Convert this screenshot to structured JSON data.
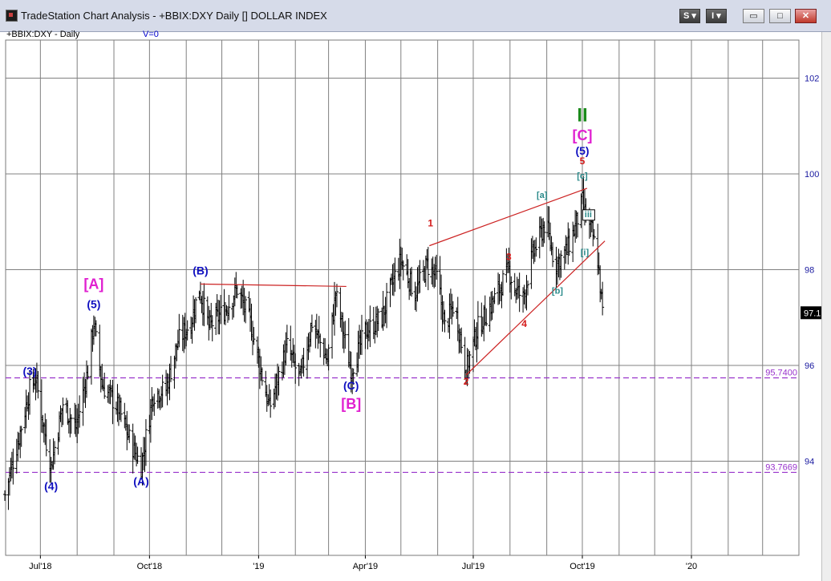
{
  "window": {
    "title": "TradeStation Chart Analysis - +BBIX:DXY Daily [] DOLLAR INDEX",
    "buttons": {
      "s_label": "S",
      "i_label": "I",
      "minimize": "▭",
      "restore": "□",
      "close": "✕"
    }
  },
  "chart_header": {
    "symbol": "+BBIX:DXY - Daily",
    "volume_label": "V=0"
  },
  "colors": {
    "grid": "#808080",
    "bars": "#000000",
    "wave_blue": "#1010c0",
    "wave_red": "#d41a1a",
    "wave_magenta": "#e020d0",
    "wave_teal": "#2a8a8a",
    "wave_green": "#1b8a1b",
    "support_line": "#9933cc",
    "trendline": "#cc2222"
  },
  "chart_data": {
    "type": "ohlc",
    "instrument": "DOLLAR INDEX (+BBIX:DXY)",
    "timeframe": "Daily",
    "x_tick_labels": [
      "Jul'18",
      "Oct'18",
      "'19",
      "Apr'19",
      "Jul'19",
      "Oct'19",
      "'20"
    ],
    "y_tick_labels": [
      "102",
      "100",
      "98",
      "96",
      "94"
    ],
    "ylim": [
      92.0,
      103.0
    ],
    "last_price": "97.1",
    "horizontal_levels": [
      {
        "label": "95.7400",
        "value": 95.74
      },
      {
        "label": "93.7669",
        "value": 93.7669
      }
    ],
    "close_path": [
      {
        "d": "2018-06-01",
        "v": 93.3
      },
      {
        "d": "2018-06-12",
        "v": 94.4
      },
      {
        "d": "2018-06-22",
        "v": 95.5
      },
      {
        "d": "2018-06-27",
        "v": 95.74
      },
      {
        "d": "2018-07-06",
        "v": 94.4
      },
      {
        "d": "2018-07-10",
        "v": 93.9
      },
      {
        "d": "2018-07-20",
        "v": 95.2
      },
      {
        "d": "2018-07-31",
        "v": 94.7
      },
      {
        "d": "2018-08-10",
        "v": 95.9
      },
      {
        "d": "2018-08-15",
        "v": 96.9
      },
      {
        "d": "2018-08-22",
        "v": 95.6
      },
      {
        "d": "2018-09-05",
        "v": 95.1
      },
      {
        "d": "2018-09-15",
        "v": 94.4
      },
      {
        "d": "2018-09-24",
        "v": 93.9
      },
      {
        "d": "2018-10-04",
        "v": 95.4
      },
      {
        "d": "2018-10-15",
        "v": 95.5
      },
      {
        "d": "2018-10-25",
        "v": 96.5
      },
      {
        "d": "2018-11-05",
        "v": 96.9
      },
      {
        "d": "2018-11-12",
        "v": 97.6
      },
      {
        "d": "2018-11-20",
        "v": 96.8
      },
      {
        "d": "2018-12-05",
        "v": 97.2
      },
      {
        "d": "2018-12-14",
        "v": 97.6
      },
      {
        "d": "2018-12-25",
        "v": 96.9
      },
      {
        "d": "2019-01-10",
        "v": 95.1
      },
      {
        "d": "2019-01-25",
        "v": 96.4
      },
      {
        "d": "2019-02-05",
        "v": 95.7
      },
      {
        "d": "2019-02-15",
        "v": 96.9
      },
      {
        "d": "2019-02-28",
        "v": 96.1
      },
      {
        "d": "2019-03-07",
        "v": 97.5
      },
      {
        "d": "2019-03-14",
        "v": 96.6
      },
      {
        "d": "2019-03-20",
        "v": 95.9
      },
      {
        "d": "2019-04-01",
        "v": 96.7
      },
      {
        "d": "2019-04-15",
        "v": 97.0
      },
      {
        "d": "2019-04-25",
        "v": 97.8
      },
      {
        "d": "2019-05-01",
        "v": 98.2
      },
      {
        "d": "2019-05-13",
        "v": 97.5
      },
      {
        "d": "2019-05-23",
        "v": 98.1
      },
      {
        "d": "2019-06-01",
        "v": 97.8
      },
      {
        "d": "2019-06-07",
        "v": 96.8
      },
      {
        "d": "2019-06-15",
        "v": 97.3
      },
      {
        "d": "2019-06-25",
        "v": 95.9
      },
      {
        "d": "2019-07-05",
        "v": 96.8
      },
      {
        "d": "2019-07-15",
        "v": 97.2
      },
      {
        "d": "2019-07-31",
        "v": 98.0
      },
      {
        "d": "2019-08-05",
        "v": 97.6
      },
      {
        "d": "2019-08-12",
        "v": 97.4
      },
      {
        "d": "2019-08-20",
        "v": 98.3
      },
      {
        "d": "2019-08-31",
        "v": 99.0
      },
      {
        "d": "2019-09-08",
        "v": 98.1
      },
      {
        "d": "2019-09-18",
        "v": 98.4
      },
      {
        "d": "2019-09-25",
        "v": 98.9
      },
      {
        "d": "2019-10-01",
        "v": 99.4
      },
      {
        "d": "2019-10-06",
        "v": 98.9
      },
      {
        "d": "2019-10-09",
        "v": 98.8
      },
      {
        "d": "2019-10-14",
        "v": 98.2
      },
      {
        "d": "2019-10-18",
        "v": 97.1
      }
    ],
    "trendlines": [
      {
        "from": {
          "d": "2018-11-13",
          "v": 97.7
        },
        "to": {
          "d": "2019-03-16",
          "v": 97.65
        }
      },
      {
        "from": {
          "d": "2019-05-25",
          "v": 98.5
        },
        "to": {
          "d": "2019-10-05",
          "v": 99.7
        }
      },
      {
        "from": {
          "d": "2019-06-25",
          "v": 95.8
        },
        "to": {
          "d": "2019-10-20",
          "v": 98.6
        }
      }
    ],
    "wave_labels": [
      {
        "text": "(3)",
        "d": "2018-06-22",
        "v": 95.8,
        "color": "blue"
      },
      {
        "text": "(4)",
        "d": "2018-07-10",
        "v": 93.4,
        "color": "blue"
      },
      {
        "text": "(5)",
        "d": "2018-08-15",
        "v": 97.2,
        "color": "blue"
      },
      {
        "text": "[A]",
        "d": "2018-08-15",
        "v": 97.6,
        "color": "magenta"
      },
      {
        "text": "(A)",
        "d": "2018-09-24",
        "v": 93.5,
        "color": "blue"
      },
      {
        "text": "(B)",
        "d": "2018-11-13",
        "v": 97.9,
        "color": "blue"
      },
      {
        "text": "(C)",
        "d": "2019-03-20",
        "v": 95.5,
        "color": "blue"
      },
      {
        "text": "[B]",
        "d": "2019-03-20",
        "v": 95.1,
        "color": "magenta"
      },
      {
        "text": "1",
        "d": "2019-05-26",
        "v": 98.9,
        "color": "red"
      },
      {
        "text": "2",
        "d": "2019-06-25",
        "v": 95.6,
        "color": "red"
      },
      {
        "text": "3",
        "d": "2019-07-31",
        "v": 98.2,
        "color": "red"
      },
      {
        "text": "4",
        "d": "2019-08-13",
        "v": 96.8,
        "color": "red"
      },
      {
        "text": "[a]",
        "d": "2019-08-28",
        "v": 99.5,
        "color": "teal"
      },
      {
        "text": "[b]",
        "d": "2019-09-10",
        "v": 97.5,
        "color": "teal"
      },
      {
        "text": "[c]",
        "d": "2019-10-01",
        "v": 99.9,
        "color": "teal"
      },
      {
        "text": "5",
        "d": "2019-10-01",
        "v": 100.2,
        "color": "red"
      },
      {
        "text": "(5)",
        "d": "2019-10-01",
        "v": 100.4,
        "color": "blue"
      },
      {
        "text": "[C]",
        "d": "2019-10-01",
        "v": 100.7,
        "color": "magenta"
      },
      {
        "text": "II",
        "d": "2019-10-01",
        "v": 101.1,
        "color": "green"
      },
      {
        "text": "[i]",
        "d": "2019-10-03",
        "v": 98.3,
        "color": "teal"
      },
      {
        "text": "iii",
        "d": "2019-10-06",
        "v": 99.1,
        "color": "teal"
      }
    ]
  }
}
